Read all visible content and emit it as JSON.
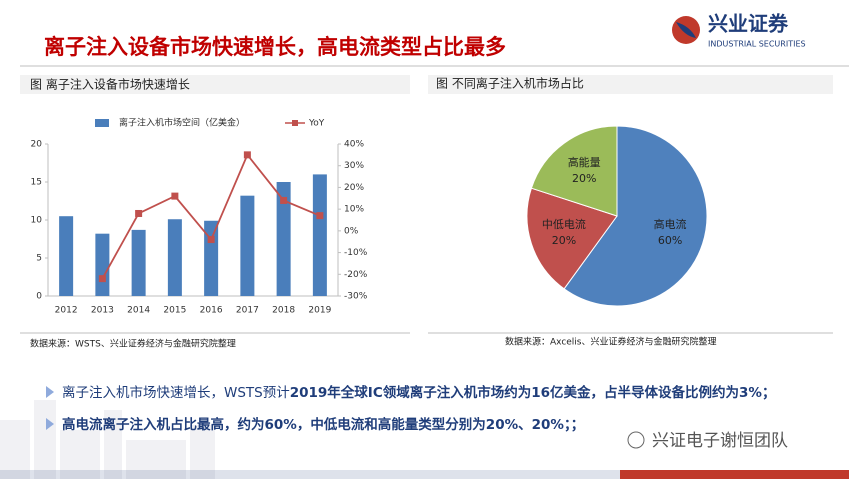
{
  "header": {
    "title": "离子注入设备市场快速增长，高电流类型占比最多",
    "logo_cn": "兴业证券",
    "logo_en": "INDUSTRIAL SECURITIES"
  },
  "chart_data": [
    {
      "type": "bar",
      "caption": "图  离子注入设备市场快速增长",
      "source": "数据来源：WSTS、兴业证券经济与金融研究院整理",
      "categories": [
        "2012",
        "2013",
        "2014",
        "2015",
        "2016",
        "2017",
        "2018",
        "2019"
      ],
      "series": [
        {
          "name": "离子注入机市场空间（亿美金）",
          "color": "#4a7ebb",
          "values": [
            10.5,
            8.2,
            8.7,
            10.1,
            9.9,
            13.2,
            15.0,
            16.0
          ]
        },
        {
          "name": "YoY",
          "type": "line",
          "axis": "y2",
          "color": "#c0504d",
          "values": [
            null,
            -22,
            8,
            16,
            -4,
            35,
            14,
            7
          ]
        }
      ],
      "ylim": [
        0,
        20
      ],
      "yticks": [
        0,
        5,
        10,
        15,
        20
      ],
      "y2lim": [
        -30,
        40
      ],
      "y2ticks": [
        {
          "value": -30,
          "label": "-30%"
        },
        {
          "value": -20,
          "label": "-20%"
        },
        {
          "value": -10,
          "label": "-10%"
        },
        {
          "value": 0,
          "label": "0%"
        },
        {
          "value": 10,
          "label": "10%"
        },
        {
          "value": 20,
          "label": "20%"
        },
        {
          "value": 30,
          "label": "30%"
        },
        {
          "value": 40,
          "label": "40%"
        }
      ],
      "legend": "top"
    },
    {
      "type": "pie",
      "caption": "图  不同离子注入机市场占比",
      "source": "数据来源：Axcelis、兴业证券经济与金融研究院整理",
      "categories": [
        "高电流",
        "中低电流",
        "高能量"
      ],
      "values": [
        60,
        20,
        20
      ],
      "value_labels": [
        "60%",
        "20%",
        "20%"
      ],
      "colors": [
        "#4f81bd",
        "#c0504d",
        "#9bbb59"
      ]
    }
  ],
  "bullets": [
    {
      "normal": "离子注入机市场快速增长，WSTS预计",
      "bold": "2019年全球IC领域离子注入机市场约为16亿美金，占半导体设备比例约为3%；"
    },
    {
      "bold": "高电流离子注入机占比最高，约为60%，中低电流和高能量类型分别为20%、20%；；"
    }
  ],
  "watermark": "兴证电子谢恒团队"
}
